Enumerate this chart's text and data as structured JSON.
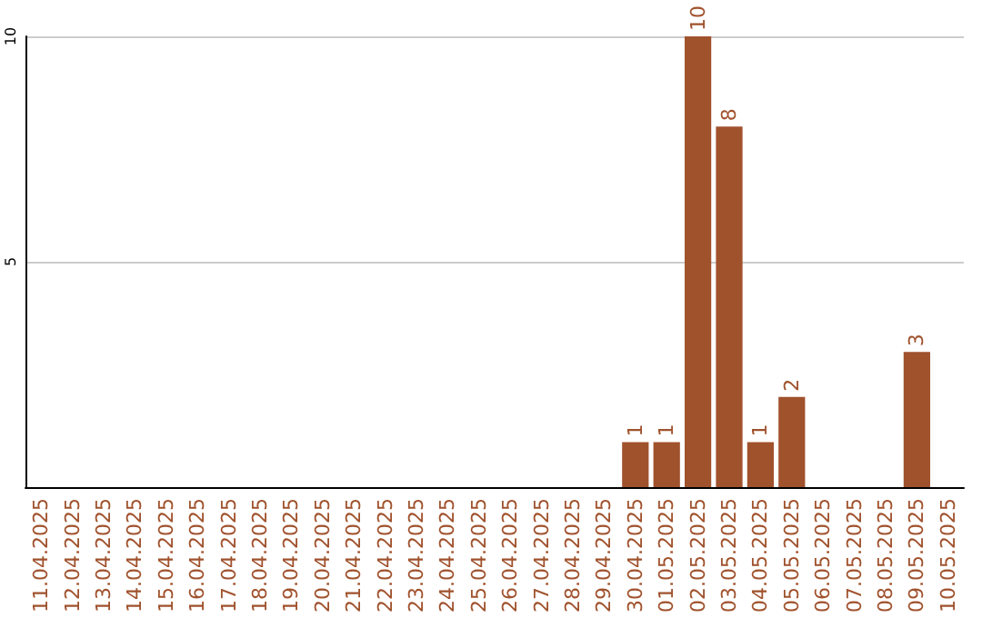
{
  "chart_data": {
    "type": "bar",
    "categories": [
      "11.04.2025",
      "12.04.2025",
      "13.04.2025",
      "14.04.2025",
      "15.04.2025",
      "16.04.2025",
      "17.04.2025",
      "18.04.2025",
      "19.04.2025",
      "20.04.2025",
      "21.04.2025",
      "22.04.2025",
      "23.04.2025",
      "24.04.2025",
      "25.04.2025",
      "26.04.2025",
      "27.04.2025",
      "28.04.2025",
      "29.04.2025",
      "30.04.2025",
      "01.05.2025",
      "02.05.2025",
      "03.05.2025",
      "04.05.2025",
      "05.05.2025",
      "06.05.2025",
      "07.05.2025",
      "08.05.2025",
      "09.05.2025",
      "10.05.2025"
    ],
    "values": [
      null,
      null,
      null,
      null,
      null,
      null,
      null,
      null,
      null,
      null,
      null,
      null,
      null,
      null,
      null,
      null,
      null,
      null,
      null,
      1,
      1,
      10,
      8,
      1,
      2,
      null,
      null,
      null,
      3,
      null
    ],
    "color": "#a0522d",
    "ylim": [
      0,
      10
    ],
    "yticks": [
      5,
      10
    ],
    "grid": "y",
    "data_labels": true
  }
}
